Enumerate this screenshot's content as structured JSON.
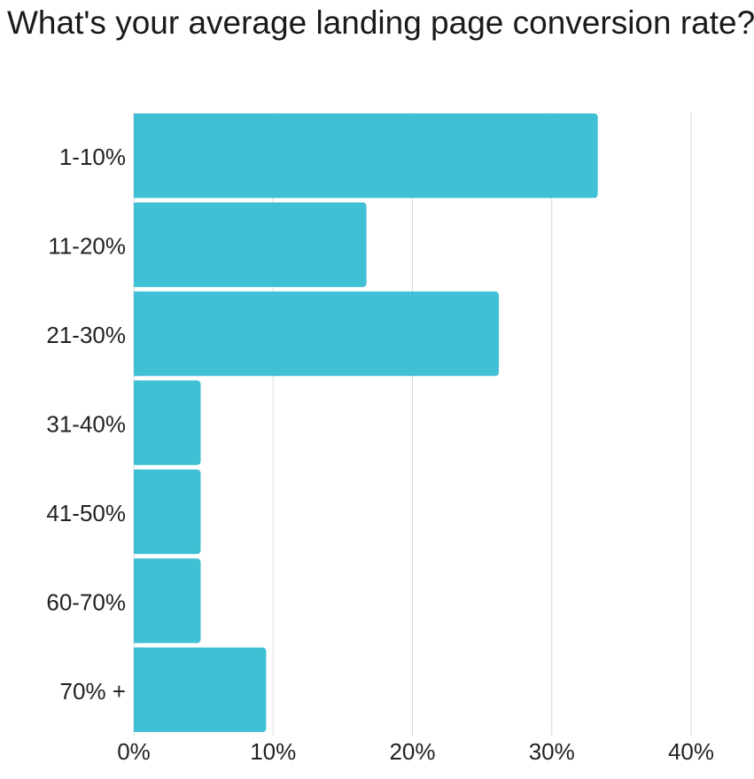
{
  "title": "What's your average landing page conversion rate?",
  "colors": {
    "bar": "#40C0D4",
    "grid": "#d9d9d9",
    "text": "#222222"
  },
  "chart_data": {
    "type": "bar",
    "orientation": "horizontal",
    "title": "What's your average landing page conversion rate?",
    "categories": [
      "1-10%",
      "11-20%",
      "21-30%",
      "31-40%",
      "41-50%",
      "60-70%",
      "70% +"
    ],
    "values": [
      33.3,
      16.7,
      26.2,
      4.8,
      4.8,
      4.8,
      9.5
    ],
    "xlim": [
      0,
      40
    ],
    "x_ticks": [
      "0%",
      "10%",
      "20%",
      "30%",
      "40%"
    ],
    "xlabel": "",
    "ylabel": "",
    "grid": true,
    "legend": "none"
  }
}
